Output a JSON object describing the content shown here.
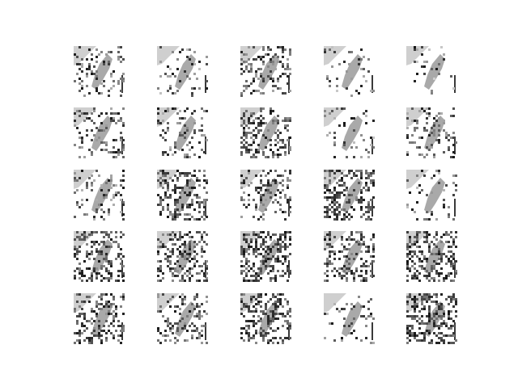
{
  "figure": {
    "background": "#ffffff",
    "grid": {
      "rows": 5,
      "cols": 5
    },
    "tile_style": "grayscale sample image",
    "tiles": [
      {
        "row": 0,
        "col": 0,
        "seed": 11,
        "noise": 0.35
      },
      {
        "row": 0,
        "col": 1,
        "seed": 12,
        "noise": 0.2
      },
      {
        "row": 0,
        "col": 2,
        "seed": 13,
        "noise": 0.45
      },
      {
        "row": 0,
        "col": 3,
        "seed": 14,
        "noise": 0.15
      },
      {
        "row": 0,
        "col": 4,
        "seed": 15,
        "noise": 0.1
      },
      {
        "row": 1,
        "col": 0,
        "seed": 21,
        "noise": 0.4
      },
      {
        "row": 1,
        "col": 1,
        "seed": 22,
        "noise": 0.3
      },
      {
        "row": 1,
        "col": 2,
        "seed": 23,
        "noise": 0.55
      },
      {
        "row": 1,
        "col": 3,
        "seed": 24,
        "noise": 0.2
      },
      {
        "row": 1,
        "col": 4,
        "seed": 25,
        "noise": 0.35
      },
      {
        "row": 2,
        "col": 0,
        "seed": 31,
        "noise": 0.3
      },
      {
        "row": 2,
        "col": 1,
        "seed": 32,
        "noise": 0.55
      },
      {
        "row": 2,
        "col": 2,
        "seed": 33,
        "noise": 0.45
      },
      {
        "row": 2,
        "col": 3,
        "seed": 34,
        "noise": 0.65
      },
      {
        "row": 2,
        "col": 4,
        "seed": 35,
        "noise": 0.2
      },
      {
        "row": 3,
        "col": 0,
        "seed": 41,
        "noise": 0.65
      },
      {
        "row": 3,
        "col": 1,
        "seed": 42,
        "noise": 0.6
      },
      {
        "row": 3,
        "col": 2,
        "seed": 43,
        "noise": 0.75
      },
      {
        "row": 3,
        "col": 3,
        "seed": 44,
        "noise": 0.55
      },
      {
        "row": 3,
        "col": 4,
        "seed": 45,
        "noise": 0.7
      },
      {
        "row": 4,
        "col": 0,
        "seed": 51,
        "noise": 0.6
      },
      {
        "row": 4,
        "col": 1,
        "seed": 52,
        "noise": 0.45
      },
      {
        "row": 4,
        "col": 2,
        "seed": 53,
        "noise": 0.7
      },
      {
        "row": 4,
        "col": 3,
        "seed": 54,
        "noise": 0.25
      },
      {
        "row": 4,
        "col": 4,
        "seed": 55,
        "noise": 0.75
      }
    ]
  }
}
